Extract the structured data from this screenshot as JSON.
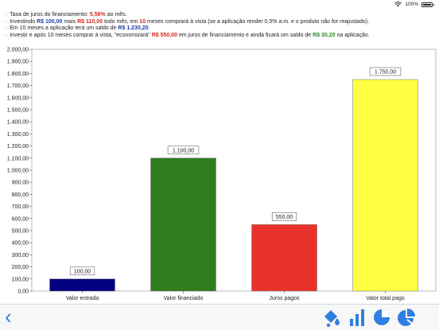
{
  "status": {
    "battery": "100%"
  },
  "info": {
    "l1": {
      "a": "Taxa de juros do financiamento: ",
      "b": "5,56%",
      "c": " ao mês."
    },
    "l2": {
      "a": "Investindo ",
      "b": "R$ 100,00",
      "c": " mais ",
      "d": "R$ 110,00",
      "e": " todo mês, em ",
      "f": "10",
      "g": " meses comprará à vista (se a aplicação render 0,5% a.m. e o produto não for reajustado)."
    },
    "l3": {
      "a": "Em 10 meses a aplicação terá um saldo de ",
      "b": "R$ 1.230,20",
      "c": "."
    },
    "l4": {
      "a": "Investir e após 10 meses comprar à vista, \"economizará\" ",
      "b": "R$ 550,00",
      "c": " em juros de financiamento e ainda ficará um saldo de ",
      "d": "R$ 30,20",
      "e": " na aplicação."
    }
  },
  "chart_data": {
    "type": "bar",
    "categories": [
      "Valor entrada",
      "Valor financiado",
      "Juros pagos",
      "Valor total pago"
    ],
    "values": [
      100,
      1100,
      550,
      1750
    ],
    "value_labels": [
      "100,00",
      "1.100,00",
      "550,00",
      "1.750,00"
    ],
    "colors": [
      "#000080",
      "#2e7d1e",
      "#e8312a",
      "#ffff44"
    ],
    "ylim": [
      0,
      2000
    ],
    "y_ticks": [
      "0,00",
      "100,00",
      "200,00",
      "300,00",
      "400,00",
      "500,00",
      "600,00",
      "700,00",
      "800,00",
      "900,00",
      "1.000,00",
      "1.100,00",
      "1.200,00",
      "1.300,00",
      "1.400,00",
      "1.500,00",
      "1.600,00",
      "1.700,00",
      "1.800,00",
      "1.900,00",
      "2.000,00"
    ],
    "grid": false
  },
  "toolbar": {
    "icons": [
      "paint-bucket-icon",
      "bar-chart-icon",
      "pie-chart-icon",
      "pie-slice-icon"
    ],
    "back": "‹"
  }
}
